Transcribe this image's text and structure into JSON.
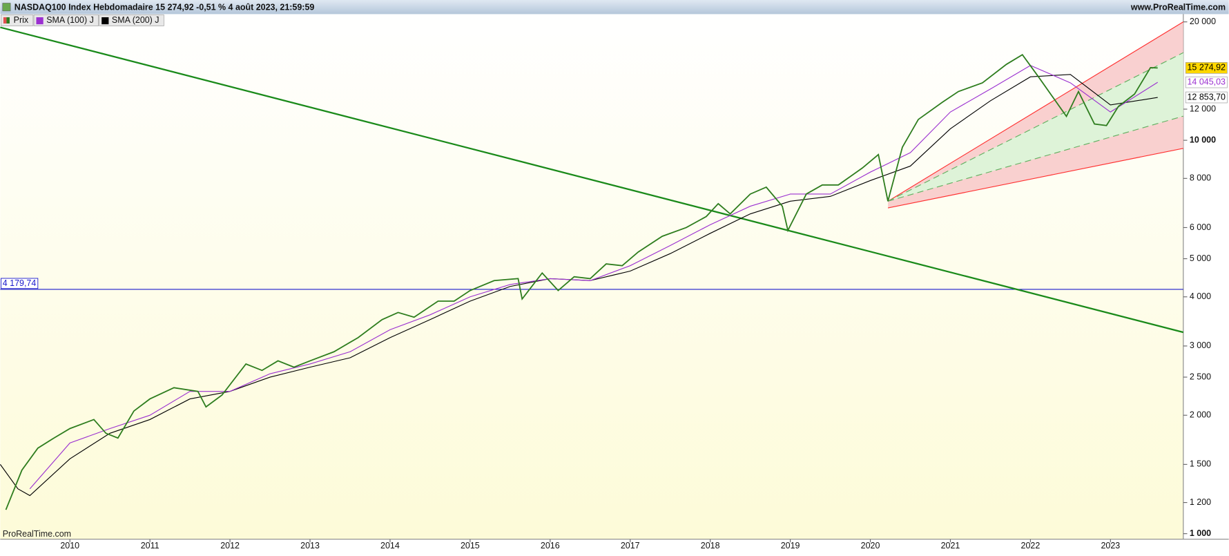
{
  "chart_data": {
    "type": "line",
    "title": "NASDAQ100 Index Hebdomadaire 15 274,92 -0,51 % 4 août 2023, 21:59:59",
    "source_link": "www.ProRealTime.com",
    "watermark": "ProRealTime.com",
    "log_scale": true,
    "xlim": [
      2009.13,
      2023.91
    ],
    "xticks": [
      2010,
      2011,
      2012,
      2013,
      2014,
      2015,
      2016,
      2017,
      2018,
      2019,
      2020,
      2021,
      2022,
      2023
    ],
    "ylim": [
      968,
      20930
    ],
    "yticks": [
      {
        "value": 1000,
        "label": "1 000"
      },
      {
        "value": 1200,
        "label": "1 200"
      },
      {
        "value": 1500,
        "label": "1 500"
      },
      {
        "value": 2000,
        "label": "2 000"
      },
      {
        "value": 2500,
        "label": "2 500"
      },
      {
        "value": 3000,
        "label": "3 000"
      },
      {
        "value": 4000,
        "label": "4 000"
      },
      {
        "value": 5000,
        "label": "5 000"
      },
      {
        "value": 6000,
        "label": "6 000"
      },
      {
        "value": 8000,
        "label": "8 000"
      },
      {
        "value": 10000,
        "label": "10 000"
      },
      {
        "value": 12000,
        "label": "12 000"
      },
      {
        "value": 20000,
        "label": "20 000"
      }
    ],
    "series": [
      {
        "name": "Prix",
        "color": "#2e7d1e",
        "x": [
          2009.2,
          2009.4,
          2009.6,
          2009.8,
          2010.0,
          2010.3,
          2010.45,
          2010.6,
          2010.8,
          2011.0,
          2011.3,
          2011.6,
          2011.7,
          2011.9,
          2012.2,
          2012.4,
          2012.6,
          2012.8,
          2013.0,
          2013.3,
          2013.6,
          2013.9,
          2014.1,
          2014.3,
          2014.6,
          2014.8,
          2015.0,
          2015.3,
          2015.6,
          2015.65,
          2015.9,
          2016.1,
          2016.3,
          2016.5,
          2016.7,
          2016.9,
          2017.1,
          2017.4,
          2017.7,
          2017.95,
          2018.1,
          2018.25,
          2018.5,
          2018.7,
          2018.9,
          2018.97,
          2019.2,
          2019.4,
          2019.6,
          2019.9,
          2020.1,
          2020.22,
          2020.4,
          2020.6,
          2020.9,
          2021.1,
          2021.4,
          2021.7,
          2021.9,
          2022.1,
          2022.45,
          2022.6,
          2022.8,
          2022.95,
          2023.1,
          2023.3,
          2023.5,
          2023.59
        ],
        "values": [
          1150,
          1450,
          1650,
          1750,
          1850,
          1950,
          1800,
          1750,
          2050,
          2200,
          2350,
          2300,
          2100,
          2250,
          2700,
          2600,
          2750,
          2650,
          2750,
          2900,
          3150,
          3500,
          3650,
          3550,
          3900,
          3900,
          4150,
          4400,
          4450,
          3950,
          4600,
          4150,
          4500,
          4450,
          4850,
          4800,
          5200,
          5700,
          6000,
          6400,
          6900,
          6500,
          7300,
          7600,
          6800,
          5900,
          7300,
          7700,
          7700,
          8500,
          9200,
          7000,
          9600,
          11300,
          12500,
          13300,
          14000,
          15600,
          16500,
          14500,
          11500,
          13300,
          11000,
          10900,
          12200,
          13100,
          15300,
          15275
        ]
      },
      {
        "name": "SMA (100) J",
        "color": "#9b30d0",
        "x": [
          2009.5,
          2010.0,
          2010.5,
          2011.0,
          2011.5,
          2012.0,
          2012.5,
          2013.0,
          2013.5,
          2014.0,
          2014.5,
          2015.0,
          2015.5,
          2016.0,
          2016.5,
          2017.0,
          2017.5,
          2018.0,
          2018.5,
          2019.0,
          2019.5,
          2020.0,
          2020.5,
          2021.0,
          2021.5,
          2022.0,
          2022.5,
          2023.0,
          2023.59
        ],
        "values": [
          1300,
          1700,
          1850,
          2000,
          2300,
          2300,
          2550,
          2700,
          2900,
          3300,
          3600,
          4000,
          4300,
          4450,
          4400,
          4800,
          5400,
          6100,
          6800,
          7300,
          7300,
          8300,
          9300,
          11800,
          13500,
          15500,
          14000,
          11800,
          14045
        ]
      },
      {
        "name": "SMA (200) J",
        "color": "#000000",
        "x": [
          2009.13,
          2009.35,
          2009.5,
          2010.0,
          2010.5,
          2011.0,
          2011.5,
          2012.0,
          2012.5,
          2013.0,
          2013.5,
          2014.0,
          2014.5,
          2015.0,
          2015.5,
          2016.0,
          2016.5,
          2017.0,
          2017.5,
          2018.0,
          2018.5,
          2019.0,
          2019.5,
          2020.0,
          2020.5,
          2021.0,
          2021.5,
          2022.0,
          2022.5,
          2023.0,
          2023.59
        ],
        "values": [
          1500,
          1300,
          1250,
          1550,
          1800,
          1950,
          2200,
          2300,
          2500,
          2650,
          2800,
          3150,
          3500,
          3900,
          4250,
          4450,
          4400,
          4650,
          5150,
          5800,
          6500,
          7000,
          7200,
          7900,
          8600,
          10700,
          12600,
          14500,
          14700,
          12300,
          12853
        ]
      }
    ],
    "price_labels": [
      {
        "value": 15274.92,
        "label": "15 274,92",
        "color": "#000000",
        "background": "#ffd700"
      },
      {
        "value": 14045.03,
        "label": "14 045,03",
        "color": "#9b30d0",
        "background": "#ffffff"
      },
      {
        "value": 12853.7,
        "label": "12 853,70",
        "color": "#000000",
        "background": "#ffffff"
      }
    ],
    "horizontal_line": {
      "value": 4179.74,
      "label": "4 179,74",
      "color": "#1a1acc"
    },
    "trendline": {
      "x": [
        2009.13,
        2023.91
      ],
      "y": [
        19370,
        3250
      ],
      "color": "#1a8a1a"
    },
    "channel": {
      "x": [
        2020.22,
        2023.91
      ],
      "outer_upper": [
        7000,
        20000
      ],
      "inner_upper": [
        7000,
        16700
      ],
      "inner_lower": [
        7000,
        11520
      ],
      "outer_lower": [
        6730,
        9540
      ],
      "outer_color": "#ff3030",
      "inner_color": "#60b060"
    }
  }
}
